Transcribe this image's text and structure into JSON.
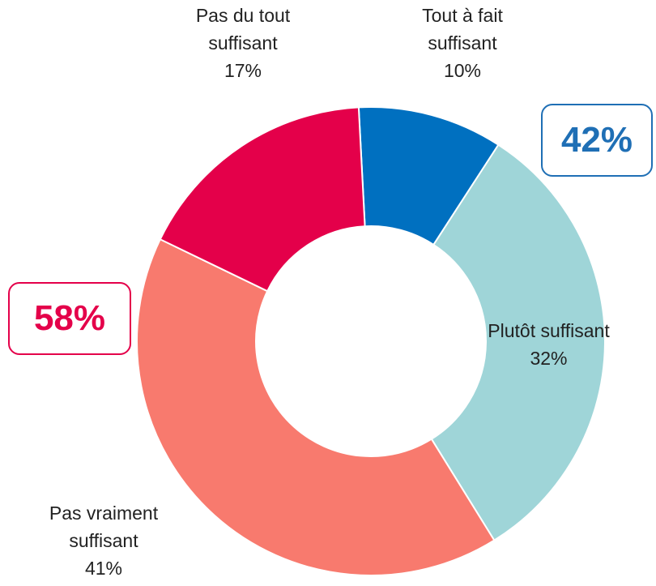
{
  "chart_data": {
    "type": "donut",
    "categories": [
      "Tout à fait suffisant",
      "Plutôt suffisant",
      "Pas vraiment suffisant",
      "Pas du tout suffisant"
    ],
    "values": [
      10,
      32,
      41,
      17
    ],
    "value_labels": [
      "10%",
      "32%",
      "41%",
      "17%"
    ],
    "colors": [
      "#0070c0",
      "#9fd5d8",
      "#f87a6e",
      "#e4004a"
    ],
    "annotations": [
      {
        "text": "42%",
        "color": "#1f6fb5"
      },
      {
        "text": "58%",
        "color": "#e4004a"
      }
    ]
  }
}
